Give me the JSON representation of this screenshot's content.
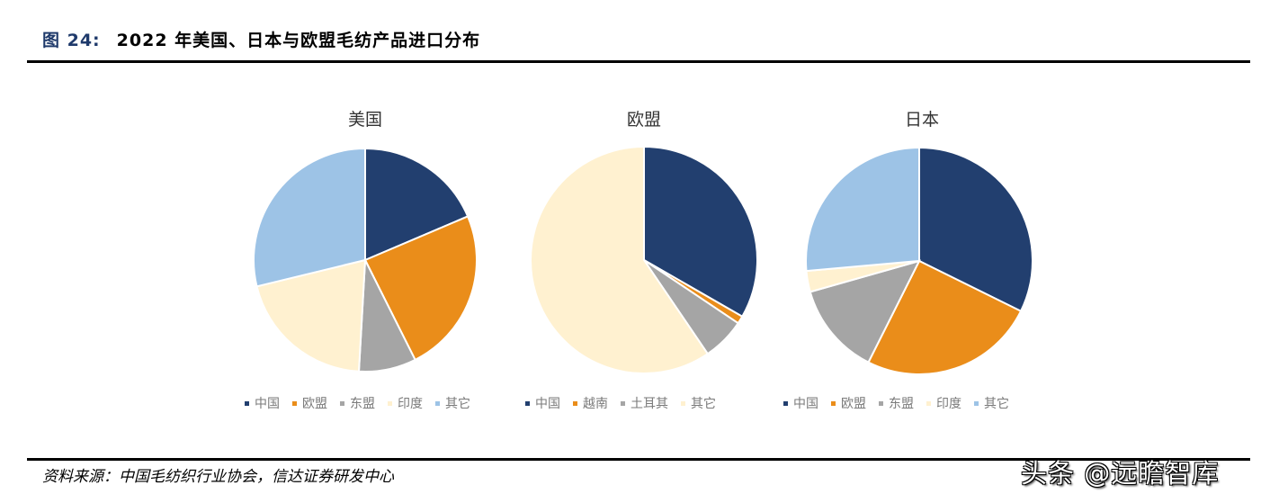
{
  "figure": {
    "number_label": "图 24:",
    "title": "2022 年美国、日本与欧盟毛纺产品进口分布"
  },
  "source_note": "资料来源：中国毛纺织行业协会，信达证券研发中心",
  "watermark": "头条 @远瞻智库",
  "colors": {
    "china": "#223f6f",
    "orange": "#ea8d1a",
    "gray": "#a5a5a5",
    "beige": "#fff1d0",
    "lightblue": "#9dc3e6"
  },
  "chart_data": [
    {
      "type": "pie",
      "title": "美国",
      "categories": [
        "中国",
        "欧盟",
        "东盟",
        "印度",
        "其它"
      ],
      "values": [
        18.6,
        24.0,
        8.3,
        20.3,
        28.8
      ],
      "colors": [
        "#223f6f",
        "#ea8d1a",
        "#a5a5a5",
        "#fff1d0",
        "#9dc3e6"
      ],
      "legend_position": "bottom",
      "start_angle_deg": 0,
      "direction": "clockwise"
    },
    {
      "type": "pie",
      "title": "欧盟",
      "categories": [
        "中国",
        "越南",
        "土耳其",
        "其它"
      ],
      "values": [
        33.3,
        1.1,
        6.1,
        59.5
      ],
      "colors": [
        "#223f6f",
        "#ea8d1a",
        "#a5a5a5",
        "#fff1d0"
      ],
      "legend_position": "bottom",
      "start_angle_deg": 0,
      "direction": "clockwise"
    },
    {
      "type": "pie",
      "title": "日本",
      "categories": [
        "中国",
        "欧盟",
        "东盟",
        "印度",
        "其它"
      ],
      "values": [
        32.3,
        25.1,
        13.2,
        3.0,
        26.4
      ],
      "colors": [
        "#223f6f",
        "#ea8d1a",
        "#a5a5a5",
        "#fff1d0",
        "#9dc3e6"
      ],
      "legend_position": "bottom",
      "start_angle_deg": 0,
      "direction": "clockwise"
    }
  ]
}
